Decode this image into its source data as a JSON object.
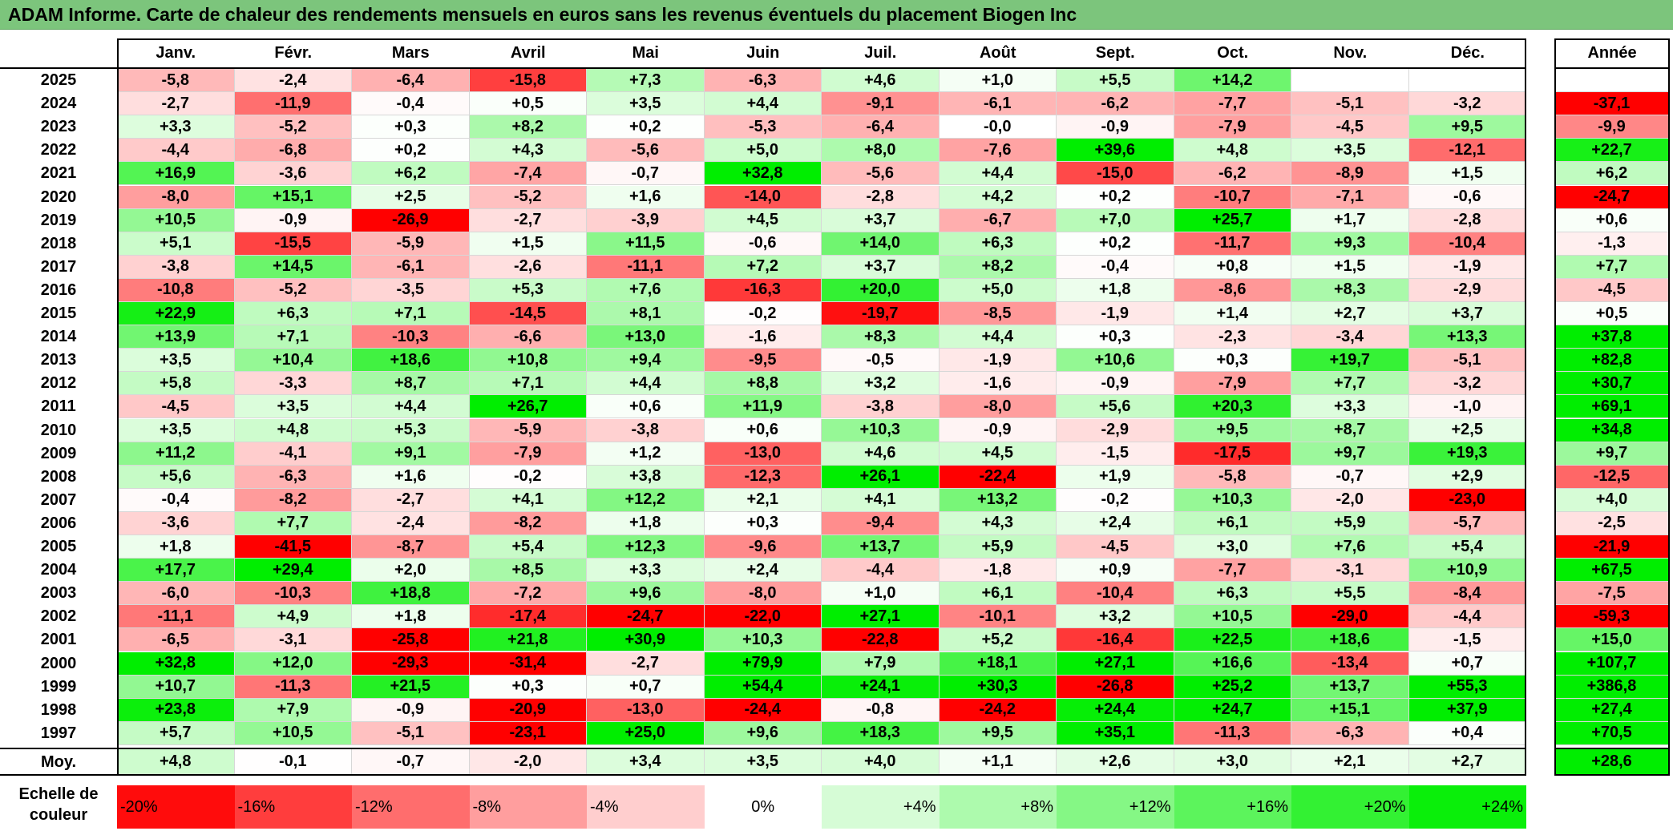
{
  "title": "ADAM Informe. Carte de chaleur des rendements mensuels en euros sans les revenus éventuels du placement Biogen Inc",
  "chart_data": {
    "type": "heatmap",
    "title": "ADAM Informe. Carte de chaleur des rendements mensuels en euros sans les revenus éventuels du placement Biogen Inc",
    "months": [
      "Janv.",
      "Févr.",
      "Mars",
      "Avril",
      "Mai",
      "Juin",
      "Juil.",
      "Août",
      "Sept.",
      "Oct.",
      "Nov.",
      "Déc."
    ],
    "annual_header": "Année",
    "avg_label": "Moy.",
    "rows": [
      {
        "year": "2025",
        "values": [
          "-5,8",
          "-2,4",
          "-6,4",
          "-15,8",
          "+7,3",
          "-6,3",
          "+4,6",
          "+1,0",
          "+5,5",
          "+14,2",
          "",
          ""
        ],
        "annual": ""
      },
      {
        "year": "2024",
        "values": [
          "-2,7",
          "-11,9",
          "-0,4",
          "+0,5",
          "+3,5",
          "+4,4",
          "-9,1",
          "-6,1",
          "-6,2",
          "-7,7",
          "-5,1",
          "-3,2"
        ],
        "annual": "-37,1"
      },
      {
        "year": "2023",
        "values": [
          "+3,3",
          "-5,2",
          "+0,3",
          "+8,2",
          "+0,2",
          "-5,3",
          "-6,4",
          "-0,0",
          "-0,9",
          "-7,9",
          "-4,5",
          "+9,5"
        ],
        "annual": "-9,9"
      },
      {
        "year": "2022",
        "values": [
          "-4,4",
          "-6,8",
          "+0,2",
          "+4,3",
          "-5,6",
          "+5,0",
          "+8,0",
          "-7,6",
          "+39,6",
          "+4,8",
          "+3,5",
          "-12,1"
        ],
        "annual": "+22,7"
      },
      {
        "year": "2021",
        "values": [
          "+16,9",
          "-3,6",
          "+6,2",
          "-7,4",
          "-0,7",
          "+32,8",
          "-5,6",
          "+4,4",
          "-15,0",
          "-6,2",
          "-8,9",
          "+1,5"
        ],
        "annual": "+6,2"
      },
      {
        "year": "2020",
        "values": [
          "-8,0",
          "+15,1",
          "+2,5",
          "-5,2",
          "+1,6",
          "-14,0",
          "-2,8",
          "+4,2",
          "+0,2",
          "-10,7",
          "-7,1",
          "-0,6"
        ],
        "annual": "-24,7"
      },
      {
        "year": "2019",
        "values": [
          "+10,5",
          "-0,9",
          "-26,9",
          "-2,7",
          "-3,9",
          "+4,5",
          "+3,7",
          "-6,7",
          "+7,0",
          "+25,7",
          "+1,7",
          "-2,8"
        ],
        "annual": "+0,6"
      },
      {
        "year": "2018",
        "values": [
          "+5,1",
          "-15,5",
          "-5,9",
          "+1,5",
          "+11,5",
          "-0,6",
          "+14,0",
          "+6,3",
          "+0,2",
          "-11,7",
          "+9,3",
          "-10,4"
        ],
        "annual": "-1,3"
      },
      {
        "year": "2017",
        "values": [
          "-3,8",
          "+14,5",
          "-6,1",
          "-2,6",
          "-11,1",
          "+7,2",
          "+3,7",
          "+8,2",
          "-0,4",
          "+0,8",
          "+1,5",
          "-1,9"
        ],
        "annual": "+7,7"
      },
      {
        "year": "2016",
        "values": [
          "-10,8",
          "-5,2",
          "-3,5",
          "+5,3",
          "+7,6",
          "-16,3",
          "+20,0",
          "+5,0",
          "+1,8",
          "-8,6",
          "+8,3",
          "-2,9"
        ],
        "annual": "-4,5"
      },
      {
        "year": "2015",
        "values": [
          "+22,9",
          "+6,3",
          "+7,1",
          "-14,5",
          "+8,1",
          "-0,2",
          "-19,7",
          "-8,5",
          "-1,9",
          "+1,4",
          "+2,7",
          "+3,7"
        ],
        "annual": "+0,5"
      },
      {
        "year": "2014",
        "values": [
          "+13,9",
          "+7,1",
          "-10,3",
          "-6,6",
          "+13,0",
          "-1,6",
          "+8,3",
          "+4,4",
          "+0,3",
          "-2,3",
          "-3,4",
          "+13,3"
        ],
        "annual": "+37,8"
      },
      {
        "year": "2013",
        "values": [
          "+3,5",
          "+10,4",
          "+18,6",
          "+10,8",
          "+9,4",
          "-9,5",
          "-0,5",
          "-1,9",
          "+10,6",
          "+0,3",
          "+19,7",
          "-5,1"
        ],
        "annual": "+82,8"
      },
      {
        "year": "2012",
        "values": [
          "+5,8",
          "-3,3",
          "+8,7",
          "+7,1",
          "+4,4",
          "+8,8",
          "+3,2",
          "-1,6",
          "-0,9",
          "-7,9",
          "+7,7",
          "-3,2"
        ],
        "annual": "+30,7"
      },
      {
        "year": "2011",
        "values": [
          "-4,5",
          "+3,5",
          "+4,4",
          "+26,7",
          "+0,6",
          "+11,9",
          "-3,8",
          "-8,0",
          "+5,6",
          "+20,3",
          "+3,3",
          "-1,0"
        ],
        "annual": "+69,1"
      },
      {
        "year": "2010",
        "values": [
          "+3,5",
          "+4,8",
          "+5,3",
          "-5,9",
          "-3,8",
          "+0,6",
          "+10,3",
          "-0,9",
          "-2,9",
          "+9,5",
          "+8,7",
          "+2,5"
        ],
        "annual": "+34,8"
      },
      {
        "year": "2009",
        "values": [
          "+11,2",
          "-4,1",
          "+9,1",
          "-7,9",
          "+1,2",
          "-13,0",
          "+4,6",
          "+4,5",
          "-1,5",
          "-17,5",
          "+9,7",
          "+19,3"
        ],
        "annual": "+9,7"
      },
      {
        "year": "2008",
        "values": [
          "+5,6",
          "-6,3",
          "+1,6",
          "-0,2",
          "+3,8",
          "-12,3",
          "+26,1",
          "-22,4",
          "+1,9",
          "-5,8",
          "-0,7",
          "+2,9"
        ],
        "annual": "-12,5"
      },
      {
        "year": "2007",
        "values": [
          "-0,4",
          "-8,2",
          "-2,7",
          "+4,1",
          "+12,2",
          "+2,1",
          "+4,1",
          "+13,2",
          "-0,2",
          "+10,3",
          "-2,0",
          "-23,0"
        ],
        "annual": "+4,0"
      },
      {
        "year": "2006",
        "values": [
          "-3,6",
          "+7,7",
          "-2,4",
          "-8,2",
          "+1,8",
          "+0,3",
          "-9,4",
          "+4,3",
          "+2,4",
          "+6,1",
          "+5,9",
          "-5,7"
        ],
        "annual": "-2,5"
      },
      {
        "year": "2005",
        "values": [
          "+1,8",
          "-41,5",
          "-8,7",
          "+5,4",
          "+12,3",
          "-9,6",
          "+13,7",
          "+5,9",
          "-4,5",
          "+3,0",
          "+7,6",
          "+5,4"
        ],
        "annual": "-21,9"
      },
      {
        "year": "2004",
        "values": [
          "+17,7",
          "+29,4",
          "+2,0",
          "+8,5",
          "+3,3",
          "+2,4",
          "-4,4",
          "-1,8",
          "+0,9",
          "-7,7",
          "-3,1",
          "+10,9"
        ],
        "annual": "+67,5"
      },
      {
        "year": "2003",
        "values": [
          "-6,0",
          "-10,3",
          "+18,8",
          "-7,2",
          "+9,6",
          "-8,0",
          "+1,0",
          "+6,1",
          "-10,4",
          "+6,3",
          "+5,5",
          "-8,4"
        ],
        "annual": "-7,5"
      },
      {
        "year": "2002",
        "values": [
          "-11,1",
          "+4,9",
          "+1,8",
          "-17,4",
          "-24,7",
          "-22,0",
          "+27,1",
          "-10,1",
          "+3,2",
          "+10,5",
          "-29,0",
          "-4,4"
        ],
        "annual": "-59,3"
      },
      {
        "year": "2001",
        "values": [
          "-6,5",
          "-3,1",
          "-25,8",
          "+21,8",
          "+30,9",
          "+10,3",
          "-22,8",
          "+5,2",
          "-16,4",
          "+22,5",
          "+18,6",
          "-1,5"
        ],
        "annual": "+15,0"
      },
      {
        "year": "2000",
        "values": [
          "+32,8",
          "+12,0",
          "-29,3",
          "-31,4",
          "-2,7",
          "+79,9",
          "+7,9",
          "+18,1",
          "+27,1",
          "+16,6",
          "-13,4",
          "+0,7"
        ],
        "annual": "+107,7"
      },
      {
        "year": "1999",
        "values": [
          "+10,7",
          "-11,3",
          "+21,5",
          "+0,3",
          "+0,7",
          "+54,4",
          "+24,1",
          "+30,3",
          "-26,8",
          "+25,2",
          "+13,7",
          "+55,3"
        ],
        "annual": "+386,8"
      },
      {
        "year": "1998",
        "values": [
          "+23,8",
          "+7,9",
          "-0,9",
          "-20,9",
          "-13,0",
          "-24,4",
          "-0,8",
          "-24,2",
          "+24,4",
          "+24,7",
          "+15,1",
          "+37,9"
        ],
        "annual": "+27,4"
      },
      {
        "year": "1997",
        "values": [
          "+5,7",
          "+10,5",
          "-5,1",
          "-23,1",
          "+25,0",
          "+9,6",
          "+18,3",
          "+9,5",
          "+35,1",
          "-11,3",
          "-6,3",
          "+0,4"
        ],
        "annual": "+70,5"
      }
    ],
    "averages": [
      "+4,8",
      "-0,1",
      "-0,7",
      "-2,0",
      "+3,4",
      "+3,5",
      "+4,0",
      "+1,1",
      "+2,6",
      "+3,0",
      "+2,1",
      "+2,7"
    ],
    "average_annual": "+28,6",
    "scale_label": "Echelle de couleur",
    "scale": [
      "-20%",
      "-16%",
      "-12%",
      "-8%",
      "-4%",
      "0%",
      "+4%",
      "+8%",
      "+12%",
      "+16%",
      "+20%",
      "+24%"
    ],
    "colors": {
      "negative_max": "#ff0000",
      "neutral": "#ffffff",
      "positive_max": "#00ee00",
      "title_bar": "#7cc57c"
    }
  }
}
